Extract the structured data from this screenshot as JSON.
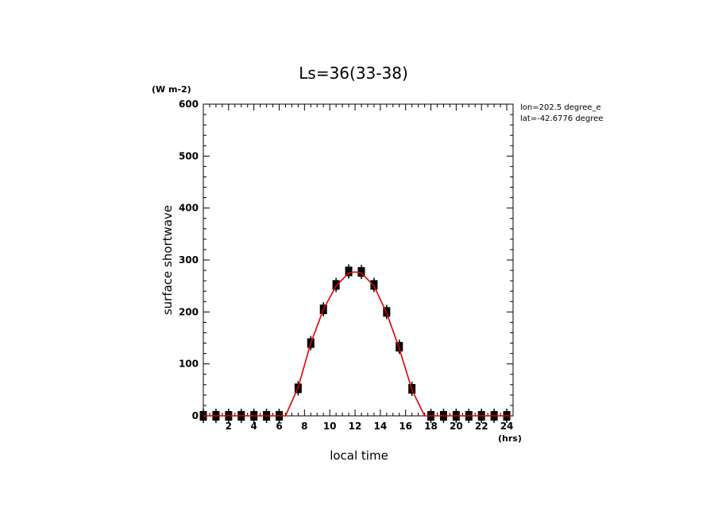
{
  "chart_data": {
    "type": "line",
    "title": "Ls=36(33-38)",
    "xlabel": "local time",
    "xunit": "(hrs)",
    "ylabel": "surface shortwave",
    "yunit": "(W m-2)",
    "xlim": [
      0,
      24.5
    ],
    "ylim": [
      0,
      600
    ],
    "xticks": [
      2,
      4,
      6,
      8,
      10,
      12,
      14,
      16,
      18,
      20,
      22,
      24
    ],
    "yticks": [
      0,
      100,
      200,
      300,
      400,
      500,
      600
    ],
    "annotations": [
      "lon=202.5 degree_e",
      "lat=-42.6776 degree"
    ],
    "series": [
      {
        "kind": "line",
        "color": "#e00000",
        "x": [
          0,
          1,
          2,
          3,
          4,
          5,
          6,
          6.5,
          7.5,
          8.5,
          9.5,
          10.5,
          11.5,
          12,
          12.5,
          13.5,
          14.5,
          15.5,
          16.5,
          17.5,
          18,
          19,
          20,
          21,
          22,
          23,
          24.5
        ],
        "y": [
          0,
          0,
          0,
          0,
          0,
          0,
          0,
          0,
          55,
          140,
          205,
          250,
          275,
          277,
          275,
          250,
          198,
          130,
          50,
          0,
          0,
          0,
          0,
          0,
          0,
          0,
          0
        ]
      },
      {
        "kind": "markers",
        "color": "#000000",
        "x": [
          0,
          1,
          2,
          3,
          4,
          5,
          6,
          7.5,
          8.5,
          9.5,
          10.5,
          11.5,
          12.5,
          13.5,
          14.5,
          15.5,
          16.5,
          18,
          19,
          20,
          21,
          22,
          23,
          24
        ],
        "y": [
          0,
          0,
          0,
          0,
          0,
          0,
          0,
          53,
          140,
          205,
          252,
          278,
          277,
          252,
          200,
          133,
          52,
          0,
          0,
          0,
          0,
          0,
          0,
          0
        ]
      }
    ]
  }
}
